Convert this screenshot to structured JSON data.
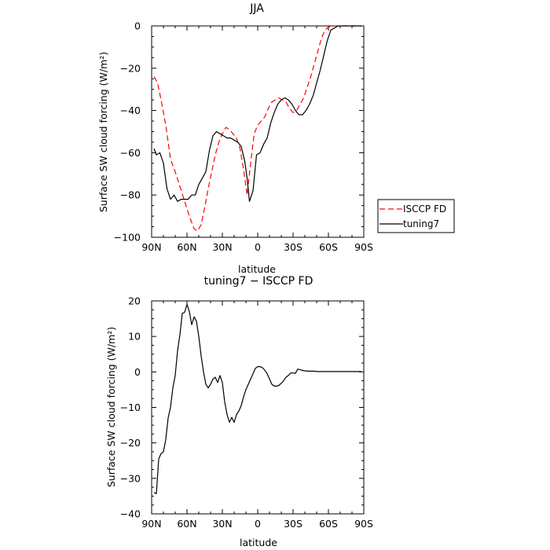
{
  "chart_data": [
    {
      "type": "line",
      "title": "JJA",
      "xlabel": "latitude",
      "ylabel": "Surface SW cloud forcing (W/m²)",
      "ylim": [
        -100,
        0
      ],
      "xlim": [
        90,
        -90
      ],
      "x_ticks": [
        90,
        60,
        30,
        0,
        -30,
        -60,
        -90
      ],
      "x_tick_labels": [
        "90N",
        "60N",
        "30N",
        "0",
        "30S",
        "60S",
        "90S"
      ],
      "y_ticks": [
        0,
        -20,
        -40,
        -60,
        -80,
        -100
      ],
      "y_tick_labels": [
        "0",
        "−20",
        "−40",
        "−60",
        "−80",
        "−100"
      ],
      "legend": {
        "placement": "outside-right"
      },
      "series": [
        {
          "name": "ISCCP FD",
          "color": "#ff0000",
          "dash": "dashed",
          "x": [
            88,
            85,
            82,
            78,
            74,
            70,
            66,
            62,
            58,
            54,
            51,
            48,
            45,
            42,
            39,
            36,
            33,
            30,
            27,
            24,
            21,
            18,
            15,
            12,
            9,
            6,
            3,
            0,
            -3,
            -6,
            -9,
            -12,
            -15,
            -18,
            -21,
            -24,
            -27,
            -30,
            -33,
            -36,
            -39,
            -42,
            -45,
            -48,
            -51,
            -54,
            -57,
            -60,
            -63,
            -66,
            -69,
            -72,
            -75,
            -80,
            -85,
            -88
          ],
          "y": [
            -24,
            -27,
            -35,
            -47,
            -63,
            -69,
            -76,
            -83,
            -90,
            -96,
            -97,
            -94,
            -86,
            -77,
            -69,
            -61,
            -55,
            -51,
            -48,
            -49,
            -51,
            -53,
            -58,
            -68,
            -80,
            -65,
            -51,
            -47,
            -45,
            -43,
            -39,
            -36,
            -35,
            -34,
            -35,
            -36,
            -39,
            -41,
            -40,
            -37,
            -34,
            -29,
            -24,
            -18,
            -12,
            -6,
            -2,
            -0.5,
            0,
            0,
            0,
            0,
            0,
            0,
            0,
            0
          ]
        },
        {
          "name": "tuning7",
          "color": "#000000",
          "dash": "solid",
          "x": [
            88,
            86,
            83,
            80,
            77,
            74,
            71,
            68,
            65,
            62,
            59,
            56,
            53,
            50,
            47,
            44,
            41,
            38,
            35,
            32,
            29,
            26,
            23,
            20,
            17,
            14,
            11,
            9,
            7,
            4,
            1,
            -2,
            -5,
            -8,
            -11,
            -14,
            -17,
            -20,
            -23,
            -26,
            -29,
            -32,
            -35,
            -38,
            -41,
            -44,
            -47,
            -50,
            -53,
            -56,
            -59,
            -62,
            -65,
            -68,
            -72,
            -80,
            -85,
            -88
          ],
          "y": [
            -58,
            -61,
            -60,
            -65,
            -77,
            -82,
            -80,
            -83,
            -82,
            -82,
            -82,
            -80,
            -80,
            -75,
            -72,
            -69,
            -59,
            -52,
            -50,
            -51,
            -52,
            -53,
            -53,
            -54,
            -55,
            -57,
            -64,
            -72,
            -83,
            -78,
            -61,
            -60,
            -56,
            -53,
            -46,
            -41,
            -37,
            -35,
            -34,
            -35,
            -37,
            -40,
            -42,
            -42,
            -40,
            -37,
            -33,
            -27,
            -21,
            -14,
            -7,
            -2,
            -1,
            0,
            0,
            0,
            0,
            0
          ]
        }
      ]
    },
    {
      "type": "line",
      "title": "tuning7 − ISCCP FD",
      "xlabel": "latitude",
      "ylabel": "Surface SW cloud forcing (W/m²)",
      "ylim": [
        -40,
        20
      ],
      "xlim": [
        90,
        -90
      ],
      "x_ticks": [
        90,
        60,
        30,
        0,
        -30,
        -60,
        -90
      ],
      "x_tick_labels": [
        "90N",
        "60N",
        "30N",
        "0",
        "30S",
        "60S",
        "90S"
      ],
      "y_ticks": [
        20,
        10,
        0,
        -10,
        -20,
        -30,
        -40
      ],
      "y_tick_labels": [
        "20",
        "10",
        "0",
        "−10",
        "−20",
        "−30",
        "−40"
      ],
      "series": [
        {
          "color": "#000000",
          "dash": "solid",
          "x": [
            88,
            86,
            84,
            82,
            80,
            78,
            76,
            74,
            72,
            70,
            68,
            66,
            64,
            62,
            60,
            58,
            56,
            54,
            52,
            50,
            48,
            46,
            44,
            42,
            40,
            38,
            36,
            34,
            32,
            30,
            28,
            26,
            24,
            22,
            20,
            18,
            16,
            14,
            12,
            10,
            8,
            6,
            4,
            2,
            0,
            -2,
            -4,
            -6,
            -8,
            -10,
            -12,
            -14,
            -16,
            -18,
            -20,
            -22,
            -24,
            -26,
            -28,
            -30,
            -32,
            -34,
            -36,
            -38,
            -40,
            -42,
            -44,
            -46,
            -48,
            -50,
            -52,
            -54,
            -56,
            -58,
            -60,
            -62,
            -64,
            -66,
            -68,
            -70,
            -72,
            -75,
            -80,
            -85,
            -88
          ],
          "y": [
            -34,
            -34.3,
            -24.5,
            -23,
            -22.5,
            -19,
            -13,
            -10,
            -4.5,
            -1,
            6,
            10.5,
            16.5,
            16.8,
            19,
            17,
            13.3,
            15.5,
            14.3,
            10,
            4.5,
            0,
            -3.5,
            -4.5,
            -3.5,
            -2,
            -1.5,
            -3,
            -1,
            -3,
            -8.5,
            -12,
            -14.2,
            -12.8,
            -14.2,
            -12,
            -11,
            -9.5,
            -7,
            -5,
            -3.5,
            -2,
            -0.5,
            1,
            1.5,
            1.5,
            1.2,
            0.5,
            -0.5,
            -2,
            -3.5,
            -4,
            -4,
            -3.8,
            -3.2,
            -2.5,
            -1.5,
            -1,
            -0.3,
            -0.3,
            -0.4,
            0.8,
            0.6,
            0.4,
            0.3,
            0.2,
            0.2,
            0.2,
            0.2,
            0.1,
            0.1,
            0.1,
            0.1,
            0.1,
            0.1,
            0.1,
            0.1,
            0.1,
            0.1,
            0.1,
            0.1,
            0.1,
            0.1,
            0.1,
            0.1
          ]
        }
      ]
    }
  ]
}
